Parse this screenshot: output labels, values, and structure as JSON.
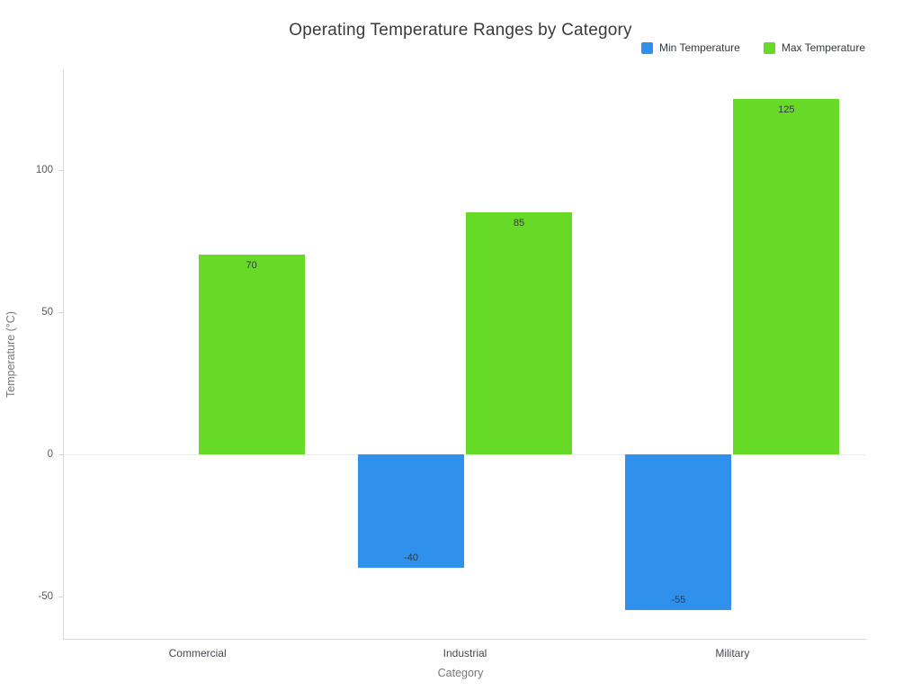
{
  "chart_data": {
    "type": "bar",
    "title": "Operating Temperature Ranges by Category",
    "xlabel": "Category",
    "ylabel": "Temperature (°C)",
    "categories": [
      "Commercial",
      "Industrial",
      "Military"
    ],
    "series": [
      {
        "name": "Min Temperature",
        "color": "#2f91ec",
        "values": [
          0,
          -40,
          -55
        ]
      },
      {
        "name": "Max Temperature",
        "color": "#66da26",
        "values": [
          70,
          85,
          125
        ]
      }
    ],
    "ylim": [
      -65,
      135
    ],
    "yticks": [
      -50,
      0,
      50,
      100
    ],
    "grid": false,
    "legend_position": "top-right",
    "bar_labels": true
  }
}
